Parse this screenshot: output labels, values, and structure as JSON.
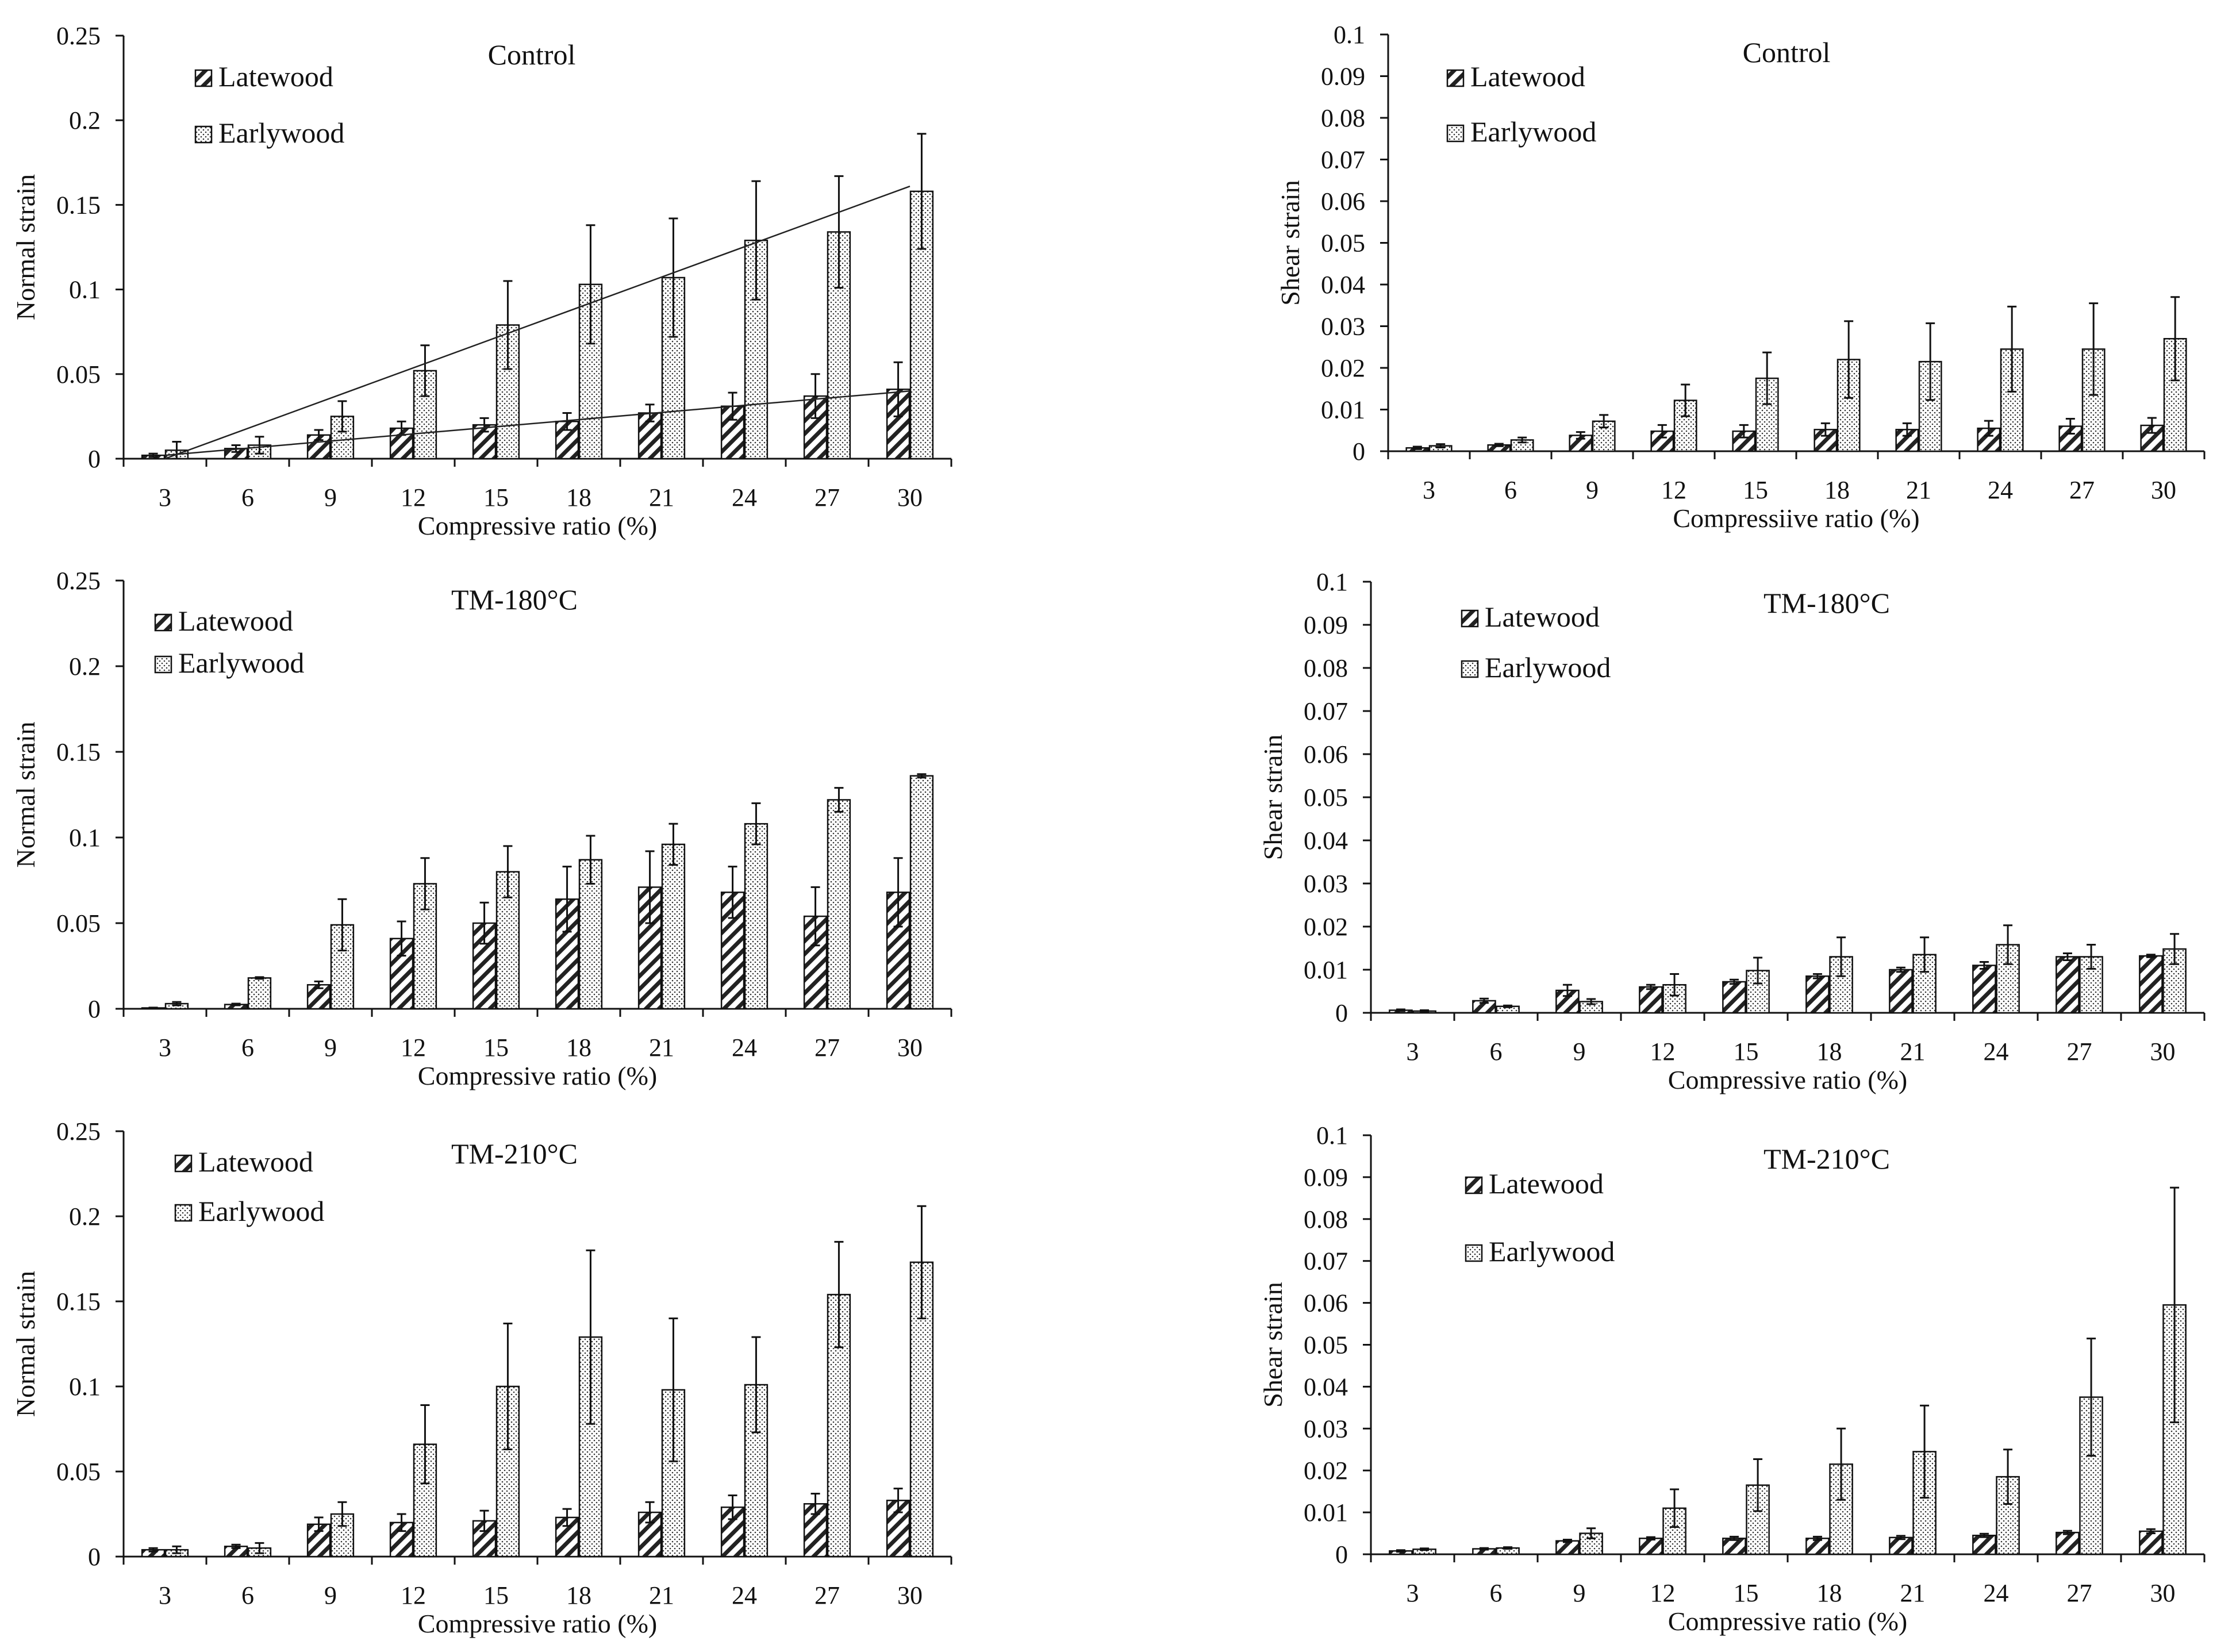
{
  "chart_data": [
    {
      "id": "normal-control",
      "type": "bar",
      "title": "Control",
      "xlabel": "Compressive ratio (%)",
      "ylabel": "Normal strain",
      "ylim": [
        0,
        0.25
      ],
      "yticks": [
        "0",
        "0.05",
        "0.1",
        "0.15",
        "0.2",
        "0.25"
      ],
      "categories": [
        "3",
        "6",
        "9",
        "12",
        "15",
        "18",
        "21",
        "24",
        "27",
        "30"
      ],
      "legend": "top-left",
      "series": [
        {
          "name": "Latewood",
          "pattern": "hatch",
          "values": [
            0.002,
            0.006,
            0.014,
            0.018,
            0.02,
            0.022,
            0.027,
            0.031,
            0.037,
            0.041
          ],
          "errors": [
            0.001,
            0.002,
            0.003,
            0.004,
            0.004,
            0.005,
            0.005,
            0.008,
            0.013,
            0.016
          ]
        },
        {
          "name": "Earlywood",
          "pattern": "dots",
          "values": [
            0.005,
            0.008,
            0.025,
            0.052,
            0.079,
            0.103,
            0.107,
            0.129,
            0.134,
            0.158
          ],
          "errors": [
            0.005,
            0.005,
            0.009,
            0.015,
            0.026,
            0.035,
            0.035,
            0.035,
            0.033,
            0.034
          ]
        }
      ],
      "trendlines": [
        {
          "series": "Earlywood",
          "x": [
            3,
            30
          ],
          "y": [
            0,
            0.161
          ]
        },
        {
          "series": "Latewood",
          "x": [
            3,
            30
          ],
          "y": [
            0.002,
            0.04
          ]
        }
      ]
    },
    {
      "id": "shear-control",
      "type": "bar",
      "title": "Control",
      "xlabel": "Compressiive ratio (%)",
      "ylabel": "Shear strain",
      "ylim": [
        0,
        0.1
      ],
      "yticks": [
        "0",
        "0.01",
        "0.02",
        "0.03",
        "0.04",
        "0.05",
        "0.06",
        "0.07",
        "0.08",
        "0.09",
        "0.1"
      ],
      "categories": [
        "3",
        "6",
        "9",
        "12",
        "15",
        "18",
        "21",
        "24",
        "27",
        "30"
      ],
      "legend": "top-left",
      "series": [
        {
          "name": "Latewood",
          "pattern": "hatch",
          "values": [
            0.0008,
            0.0015,
            0.0038,
            0.0048,
            0.0048,
            0.0052,
            0.0052,
            0.0055,
            0.006,
            0.0062
          ],
          "errors": [
            0.0003,
            0.0003,
            0.0008,
            0.0015,
            0.0015,
            0.0015,
            0.0015,
            0.0018,
            0.0018,
            0.0018
          ]
        },
        {
          "name": "Earlywood",
          "pattern": "dots",
          "values": [
            0.0013,
            0.0027,
            0.0072,
            0.0122,
            0.0175,
            0.022,
            0.0215,
            0.0245,
            0.0245,
            0.027
          ],
          "errors": [
            0.0004,
            0.0006,
            0.0015,
            0.0038,
            0.0062,
            0.0092,
            0.0092,
            0.0102,
            0.011,
            0.01
          ]
        }
      ]
    },
    {
      "id": "normal-tm180",
      "type": "bar",
      "title": "TM-180°C",
      "xlabel": "Compressive ratio (%)",
      "ylabel": "Normal strain",
      "ylim": [
        0,
        0.25
      ],
      "yticks": [
        "0",
        "0.05",
        "0.1",
        "0.15",
        "0.2",
        "0.25"
      ],
      "categories": [
        "3",
        "6",
        "9",
        "12",
        "15",
        "18",
        "21",
        "24",
        "27",
        "30"
      ],
      "legend": "top-left",
      "series": [
        {
          "name": "Latewood",
          "pattern": "hatch",
          "values": [
            0.0005,
            0.0025,
            0.014,
            0.041,
            0.05,
            0.064,
            0.071,
            0.068,
            0.054,
            0.068
          ],
          "errors": [
            0.0002,
            0.0005,
            0.002,
            0.01,
            0.012,
            0.019,
            0.021,
            0.015,
            0.017,
            0.02
          ]
        },
        {
          "name": "Earlywood",
          "pattern": "dots",
          "values": [
            0.003,
            0.018,
            0.049,
            0.073,
            0.08,
            0.087,
            0.096,
            0.108,
            0.122,
            0.136
          ],
          "errors": [
            0.001,
            0.0005,
            0.015,
            0.015,
            0.015,
            0.014,
            0.012,
            0.012,
            0.007,
            0.001
          ]
        }
      ]
    },
    {
      "id": "shear-tm180",
      "type": "bar",
      "title": "TM-180°C",
      "xlabel": "Compressive ratio (%)",
      "ylabel": "Shear strain",
      "ylim": [
        0,
        0.1
      ],
      "yticks": [
        "0",
        "0.01",
        "0.02",
        "0.03",
        "0.04",
        "0.05",
        "0.06",
        "0.07",
        "0.08",
        "0.09",
        "0.1"
      ],
      "categories": [
        "3",
        "6",
        "9",
        "12",
        "15",
        "18",
        "21",
        "24",
        "27",
        "30"
      ],
      "legend": "top-left",
      "series": [
        {
          "name": "Latewood",
          "pattern": "hatch",
          "values": [
            0.0006,
            0.0028,
            0.0052,
            0.006,
            0.0072,
            0.0085,
            0.01,
            0.011,
            0.013,
            0.0132
          ],
          "errors": [
            0.0002,
            0.0005,
            0.0013,
            0.0005,
            0.0005,
            0.0005,
            0.0005,
            0.0008,
            0.0008,
            0.0003
          ]
        },
        {
          "name": "Earlywood",
          "pattern": "dots",
          "values": [
            0.0004,
            0.0015,
            0.0026,
            0.0065,
            0.0098,
            0.013,
            0.0135,
            0.0158,
            0.013,
            0.0148
          ],
          "errors": [
            0.0002,
            0.0002,
            0.0006,
            0.0025,
            0.003,
            0.0045,
            0.004,
            0.0045,
            0.0028,
            0.0035
          ]
        }
      ]
    },
    {
      "id": "normal-tm210",
      "type": "bar",
      "title": "TM-210°C",
      "xlabel": "Compressive ratio (%)",
      "ylabel": "Normal strain",
      "ylim": [
        0,
        0.25
      ],
      "yticks": [
        "0",
        "0.05",
        "0.1",
        "0.15",
        "0.2",
        "0.25"
      ],
      "categories": [
        "3",
        "6",
        "9",
        "12",
        "15",
        "18",
        "21",
        "24",
        "27",
        "30"
      ],
      "legend": "top-left",
      "series": [
        {
          "name": "Latewood",
          "pattern": "hatch",
          "values": [
            0.004,
            0.006,
            0.019,
            0.02,
            0.021,
            0.023,
            0.026,
            0.029,
            0.031,
            0.033
          ],
          "errors": [
            0.001,
            0.001,
            0.004,
            0.005,
            0.006,
            0.005,
            0.006,
            0.007,
            0.006,
            0.007
          ]
        },
        {
          "name": "Earlywood",
          "pattern": "dots",
          "values": [
            0.004,
            0.005,
            0.025,
            0.066,
            0.1,
            0.129,
            0.098,
            0.101,
            0.154,
            0.173
          ],
          "errors": [
            0.002,
            0.003,
            0.007,
            0.023,
            0.037,
            0.051,
            0.042,
            0.028,
            0.031,
            0.033
          ]
        }
      ]
    },
    {
      "id": "shear-tm210",
      "type": "bar",
      "title": "TM-210°C",
      "xlabel": "Compressive ratio (%)",
      "ylabel": "Shear strain",
      "ylim": [
        0,
        0.1
      ],
      "yticks": [
        "0",
        "0.01",
        "0.02",
        "0.03",
        "0.04",
        "0.05",
        "0.06",
        "0.07",
        "0.08",
        "0.09",
        "0.1"
      ],
      "categories": [
        "3",
        "6",
        "9",
        "12",
        "15",
        "18",
        "21",
        "24",
        "27",
        "30"
      ],
      "legend": "top-left",
      "series": [
        {
          "name": "Latewood",
          "pattern": "hatch",
          "values": [
            0.0008,
            0.0013,
            0.0032,
            0.0038,
            0.0038,
            0.0038,
            0.004,
            0.0045,
            0.0052,
            0.0055
          ],
          "errors": [
            0.0002,
            0.0002,
            0.0003,
            0.0003,
            0.0004,
            0.0004,
            0.0004,
            0.0004,
            0.0004,
            0.0005
          ]
        },
        {
          "name": "Earlywood",
          "pattern": "dots",
          "values": [
            0.0012,
            0.0015,
            0.005,
            0.011,
            0.0165,
            0.0215,
            0.0245,
            0.0185,
            0.0375,
            0.0595
          ],
          "errors": [
            0.0002,
            0.0002,
            0.0012,
            0.0045,
            0.0062,
            0.0085,
            0.011,
            0.0065,
            0.014,
            0.028
          ]
        }
      ]
    }
  ]
}
